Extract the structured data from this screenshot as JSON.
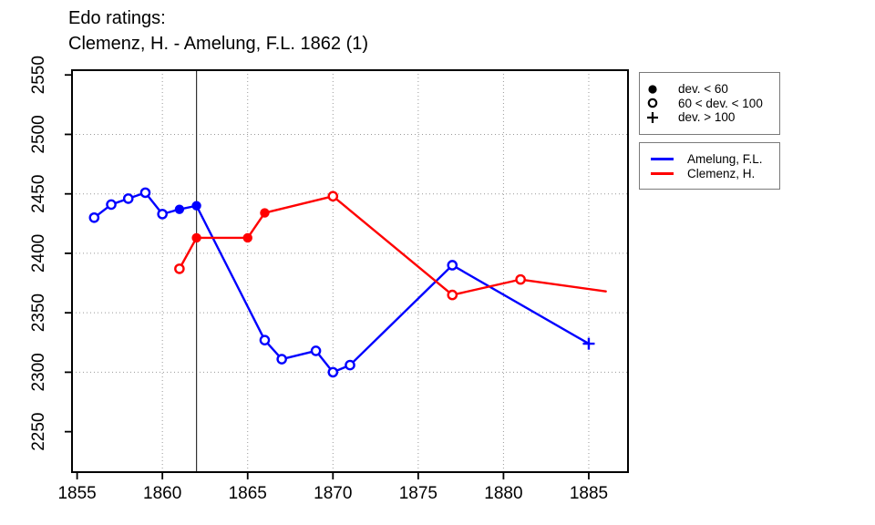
{
  "chart_data": {
    "type": "line",
    "title": "Edo ratings:",
    "subtitle": "Clemenz, H. - Amelung, F.L. 1862 (1)",
    "xlabel": "",
    "ylabel": "",
    "x_ticks": [
      1855,
      1860,
      1865,
      1870,
      1875,
      1880,
      1885
    ],
    "y_ticks": [
      2250,
      2300,
      2350,
      2400,
      2450,
      2500,
      2550
    ],
    "grid_x": [
      1860,
      1865,
      1870,
      1875,
      1880,
      1885
    ],
    "grid_y": [
      2300,
      2350,
      2400,
      2450,
      2500
    ],
    "grid": true,
    "xlim": [
      1854.7,
      1887.3
    ],
    "ylim": [
      2216,
      2554
    ],
    "vline_year": 1862,
    "legend_position": "right",
    "series": [
      {
        "name": "Amelung, F.L.",
        "color": "#0000ff",
        "points": [
          {
            "year": 1856,
            "rating": 2430,
            "dev": "open"
          },
          {
            "year": 1857,
            "rating": 2441,
            "dev": "open"
          },
          {
            "year": 1858,
            "rating": 2446,
            "dev": "open"
          },
          {
            "year": 1859,
            "rating": 2451,
            "dev": "open"
          },
          {
            "year": 1860,
            "rating": 2433,
            "dev": "open"
          },
          {
            "year": 1861,
            "rating": 2437,
            "dev": "filled"
          },
          {
            "year": 1862,
            "rating": 2440,
            "dev": "filled"
          },
          {
            "year": 1866,
            "rating": 2327,
            "dev": "open"
          },
          {
            "year": 1867,
            "rating": 2311,
            "dev": "open"
          },
          {
            "year": 1869,
            "rating": 2318,
            "dev": "open"
          },
          {
            "year": 1870,
            "rating": 2300,
            "dev": "open"
          },
          {
            "year": 1871,
            "rating": 2306,
            "dev": "open"
          },
          {
            "year": 1877,
            "rating": 2390,
            "dev": "open"
          },
          {
            "year": 1885,
            "rating": 2324,
            "dev": "plus"
          }
        ]
      },
      {
        "name": "Clemenz, H.",
        "color": "#ff0000",
        "points": [
          {
            "year": 1861,
            "rating": 2387,
            "dev": "open"
          },
          {
            "year": 1862,
            "rating": 2413,
            "dev": "filled"
          },
          {
            "year": 1865,
            "rating": 2413,
            "dev": "filled"
          },
          {
            "year": 1866,
            "rating": 2434,
            "dev": "filled"
          },
          {
            "year": 1870,
            "rating": 2448,
            "dev": "open"
          },
          {
            "year": 1877,
            "rating": 2365,
            "dev": "open"
          },
          {
            "year": 1881,
            "rating": 2378,
            "dev": "open"
          },
          {
            "year": 1886,
            "rating": 2368,
            "dev": "none"
          }
        ]
      }
    ],
    "marker_legend": {
      "items": [
        {
          "marker": "filled-circle",
          "label": "dev. < 60"
        },
        {
          "marker": "open-circle",
          "label": "60 < dev. < 100"
        },
        {
          "marker": "plus",
          "label": "dev. > 100"
        }
      ]
    }
  }
}
